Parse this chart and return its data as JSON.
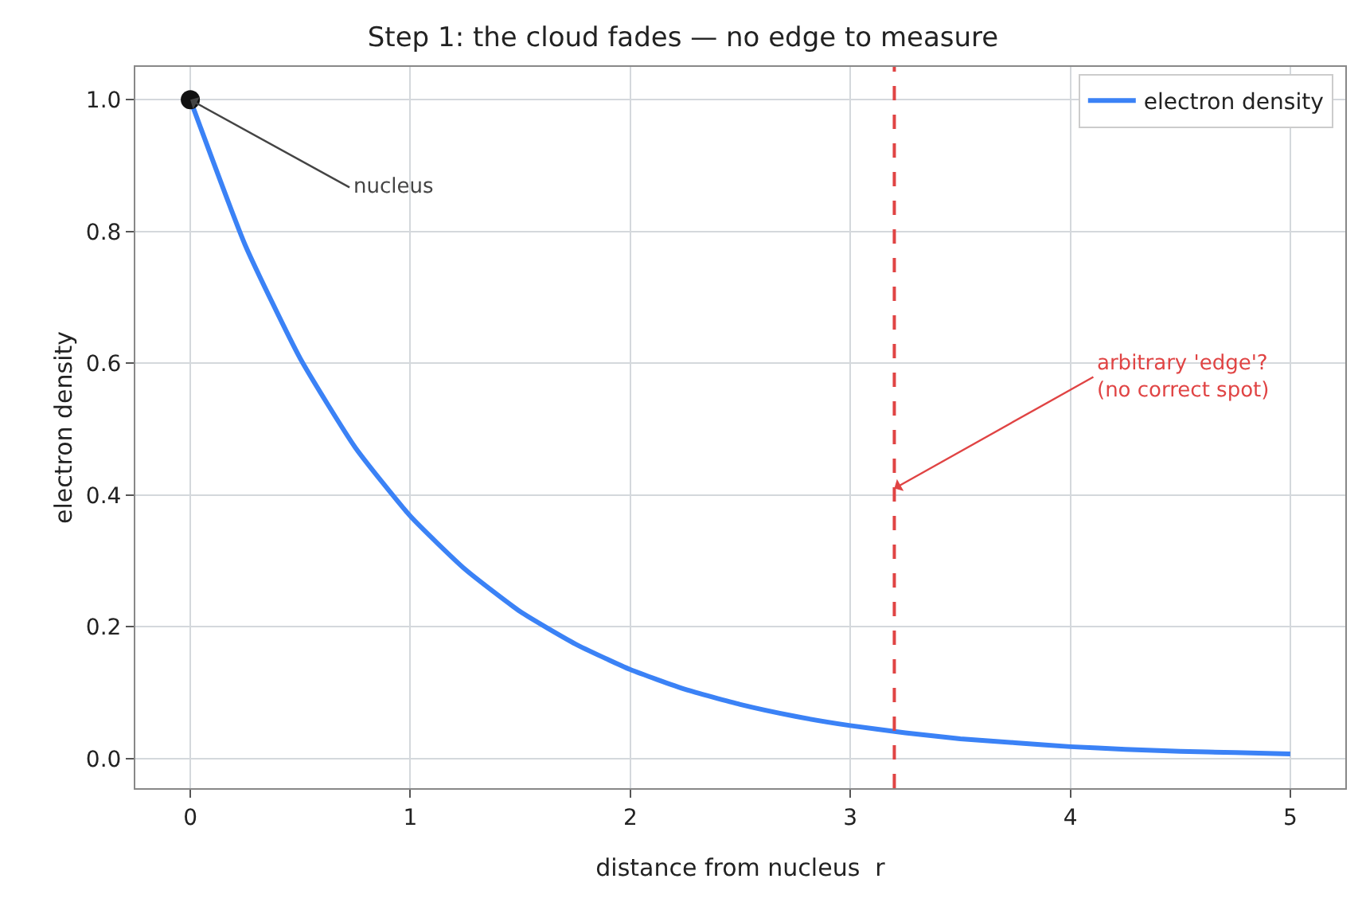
{
  "chart_data": {
    "type": "line",
    "title": "Step 1: the cloud fades — no edge to measure",
    "xlabel": "distance from nucleus  r",
    "ylabel": "electron density",
    "x": [
      0,
      0.25,
      0.5,
      0.75,
      1,
      1.25,
      1.5,
      1.75,
      2,
      2.25,
      2.5,
      2.75,
      3,
      3.25,
      3.5,
      3.75,
      4,
      4.25,
      4.5,
      4.75,
      5
    ],
    "series": [
      {
        "name": "electron density",
        "color": "#3b82f6",
        "values": [
          1,
          0.779,
          0.607,
          0.472,
          0.368,
          0.287,
          0.223,
          0.174,
          0.135,
          0.105,
          0.082,
          0.064,
          0.05,
          0.039,
          0.03,
          0.024,
          0.018,
          0.014,
          0.011,
          0.009,
          0.007
        ]
      },
      {
        "type": "scatter",
        "marker": "circle",
        "color": "#111111",
        "x": [
          0
        ],
        "values": [
          1
        ]
      }
    ],
    "xlim": [
      -0.25,
      5.25
    ],
    "xticks": [
      0,
      1,
      2,
      3,
      4,
      5
    ],
    "ylim": [
      -0.045,
      1.05
    ],
    "yticks": [
      {
        "value": 0,
        "label": "0.0"
      },
      0.2,
      0.4,
      0.6,
      0.8,
      {
        "value": 1,
        "label": "1.0"
      }
    ],
    "grid": true,
    "legend": "top right",
    "line_style": "solid",
    "ref_lines": [
      {
        "axis": "x",
        "value": 3.2,
        "color": "#e04444",
        "line_style": "dashed"
      }
    ],
    "annotations": [
      {
        "text": "nucleus",
        "x": 0,
        "y": 1
      },
      {
        "text": "arbitrary 'edge'?\n(no correct spot)",
        "x": 3.2,
        "y": 0.41
      }
    ]
  }
}
